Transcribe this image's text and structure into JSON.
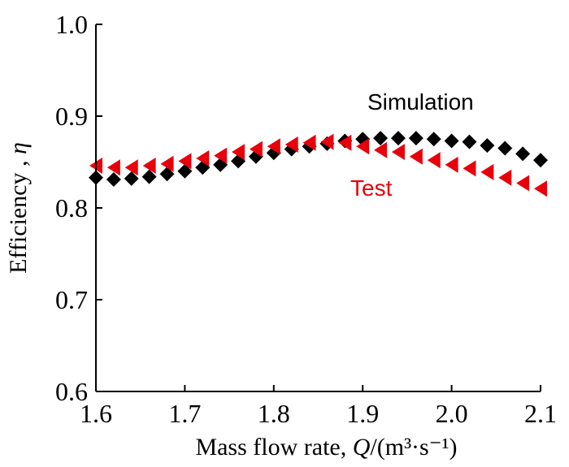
{
  "chart_data": {
    "type": "scatter",
    "title": "",
    "xlabel": "Mass flow rate",
    "xlabel_q": "Q",
    "xlabel_unit": "(m³·s⁻¹)",
    "ylabel": "Efficiency",
    "ylabel_eta": "η",
    "xlim": [
      1.6,
      2.1
    ],
    "ylim": [
      0.6,
      1.0
    ],
    "x_ticks": [
      "1.6",
      "1.7",
      "1.8",
      "1.9",
      "2.0",
      "2.1"
    ],
    "y_ticks": [
      "0.6",
      "0.7",
      "0.8",
      "0.9",
      "1.0"
    ],
    "grid": false,
    "series": [
      {
        "name": "Simulation",
        "marker": "diamond",
        "color": "#000000",
        "x": [
          1.6,
          1.62,
          1.64,
          1.66,
          1.68,
          1.7,
          1.72,
          1.74,
          1.76,
          1.78,
          1.8,
          1.82,
          1.84,
          1.86,
          1.88,
          1.9,
          1.92,
          1.94,
          1.96,
          1.98,
          2.0,
          2.02,
          2.04,
          2.06,
          2.08,
          2.1
        ],
        "y": [
          0.833,
          0.831,
          0.832,
          0.834,
          0.837,
          0.84,
          0.844,
          0.847,
          0.851,
          0.856,
          0.86,
          0.864,
          0.867,
          0.87,
          0.873,
          0.875,
          0.876,
          0.876,
          0.876,
          0.875,
          0.873,
          0.872,
          0.868,
          0.865,
          0.859,
          0.852
        ]
      },
      {
        "name": "Test",
        "marker": "triangle-left",
        "color": "#e8000b",
        "x": [
          1.6,
          1.62,
          1.64,
          1.66,
          1.68,
          1.7,
          1.72,
          1.74,
          1.76,
          1.78,
          1.8,
          1.82,
          1.84,
          1.86,
          1.88,
          1.9,
          1.92,
          1.94,
          1.96,
          1.98,
          2.0,
          2.02,
          2.04,
          2.06,
          2.08,
          2.1
        ],
        "y": [
          0.846,
          0.844,
          0.844,
          0.846,
          0.848,
          0.851,
          0.854,
          0.857,
          0.861,
          0.864,
          0.867,
          0.869,
          0.871,
          0.872,
          0.871,
          0.867,
          0.863,
          0.861,
          0.856,
          0.852,
          0.847,
          0.843,
          0.839,
          0.833,
          0.827,
          0.821
        ]
      }
    ]
  }
}
